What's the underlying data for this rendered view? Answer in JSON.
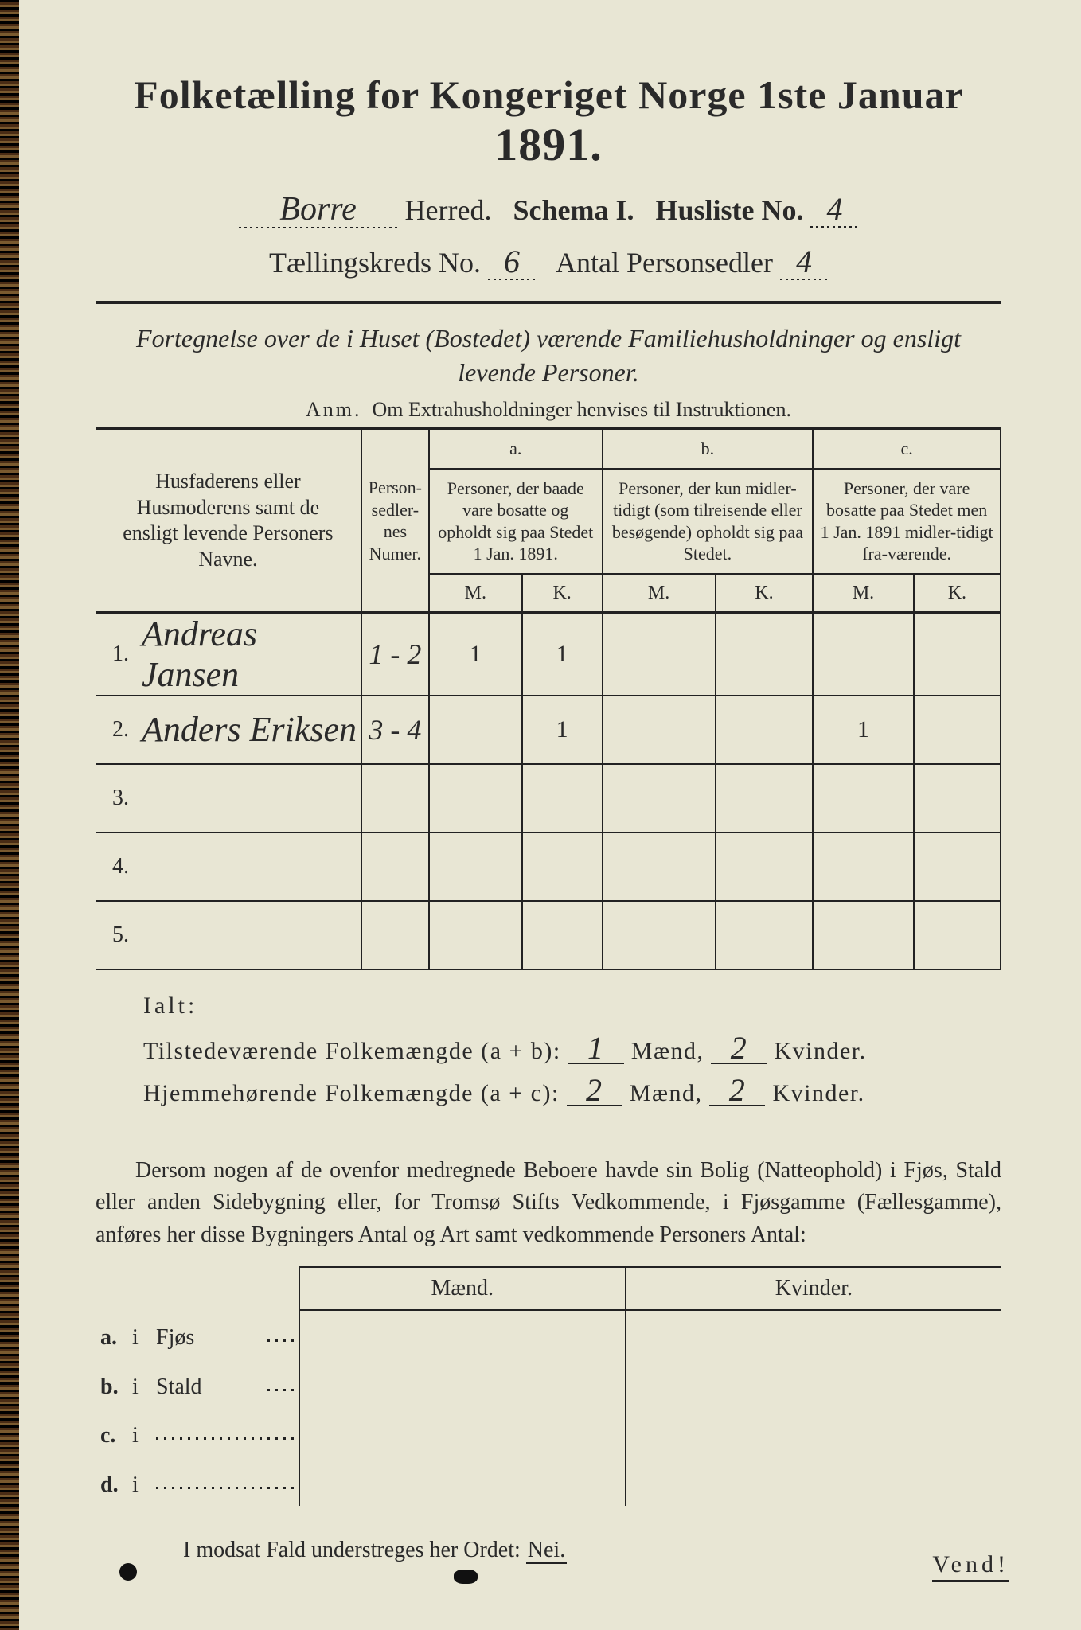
{
  "colors": {
    "paper": "#e8e6d4",
    "ink": "#2a2a2a",
    "edge": "#1a1a1a"
  },
  "header": {
    "title_pre": "Folketælling for Kongeriget Norge 1ste Januar",
    "year": "1891.",
    "herred_value": "Borre",
    "herred_label": "Herred.",
    "schema_label": "Schema I.",
    "husliste_label": "Husliste No.",
    "husliste_value": "4",
    "kreds_label": "Tællingskreds No.",
    "kreds_value": "6",
    "antal_label": "Antal Personsedler",
    "antal_value": "4"
  },
  "subtitle": "Fortegnelse over de i Huset (Bostedet) værende Familiehusholdninger og ensligt levende Personer.",
  "anm": {
    "label": "Anm.",
    "text": "Om Extrahusholdninger henvises til Instruktionen."
  },
  "table": {
    "head_names": "Husfaderens eller Husmoderens samt de ensligt levende Personers Navne.",
    "head_person": "Person-\nsedler-\nnes\nNumer.",
    "col_a_label": "a.",
    "col_a_text": "Personer, der baade vare bosatte og opholdt sig paa Stedet 1 Jan. 1891.",
    "col_b_label": "b.",
    "col_b_text": "Personer, der kun midler-tidigt (som tilreisende eller besøgende) opholdt sig paa Stedet.",
    "col_c_label": "c.",
    "col_c_text": "Personer, der vare bosatte paa Stedet men 1 Jan. 1891 midler-tidigt fra-værende.",
    "m": "M.",
    "k": "K.",
    "rows": [
      {
        "n": "1.",
        "name": "Andreas Jansen",
        "pn": "1 - 2",
        "am": "1",
        "ak": "1",
        "bm": "",
        "bk": "",
        "cm": "",
        "ck": ""
      },
      {
        "n": "2.",
        "name": "Anders Eriksen",
        "pn": "3 - 4",
        "am": "",
        "ak": "1",
        "bm": "",
        "bk": "",
        "cm": "1",
        "ck": ""
      },
      {
        "n": "3.",
        "name": "",
        "pn": "",
        "am": "",
        "ak": "",
        "bm": "",
        "bk": "",
        "cm": "",
        "ck": ""
      },
      {
        "n": "4.",
        "name": "",
        "pn": "",
        "am": "",
        "ak": "",
        "bm": "",
        "bk": "",
        "cm": "",
        "ck": ""
      },
      {
        "n": "5.",
        "name": "",
        "pn": "",
        "am": "",
        "ak": "",
        "bm": "",
        "bk": "",
        "cm": "",
        "ck": ""
      }
    ]
  },
  "totals": {
    "ialt": "Ialt:",
    "line1_label": "Tilstedeværende Folkemængde (a + b):",
    "line1_m": "1",
    "line1_k": "2",
    "line2_label": "Hjemmehørende Folkemængde (a + c):",
    "line2_m": "2",
    "line2_k": "2",
    "maend": "Mænd,",
    "kvinder": "Kvinder."
  },
  "paragraph": "Dersom nogen af de ovenfor medregnede Beboere havde sin Bolig (Natteophold) i Fjøs, Stald eller anden Sidebygning eller, for Tromsø Stifts Vedkommende, i Fjøsgamme (Fællesgamme), anføres her disse Bygningers Antal og Art samt vedkommende Personers Antal:",
  "mk": {
    "maend": "Mænd.",
    "kvinder": "Kvinder.",
    "rows": [
      {
        "lab": "a.",
        "i": "i",
        "place": "Fjøs"
      },
      {
        "lab": "b.",
        "i": "i",
        "place": "Stald"
      },
      {
        "lab": "c.",
        "i": "i",
        "place": ""
      },
      {
        "lab": "d.",
        "i": "i",
        "place": ""
      }
    ]
  },
  "nei": {
    "text_pre": "I modsat Fald understreges her Ordet:",
    "nei": "Nei."
  },
  "vend": "Vend!"
}
